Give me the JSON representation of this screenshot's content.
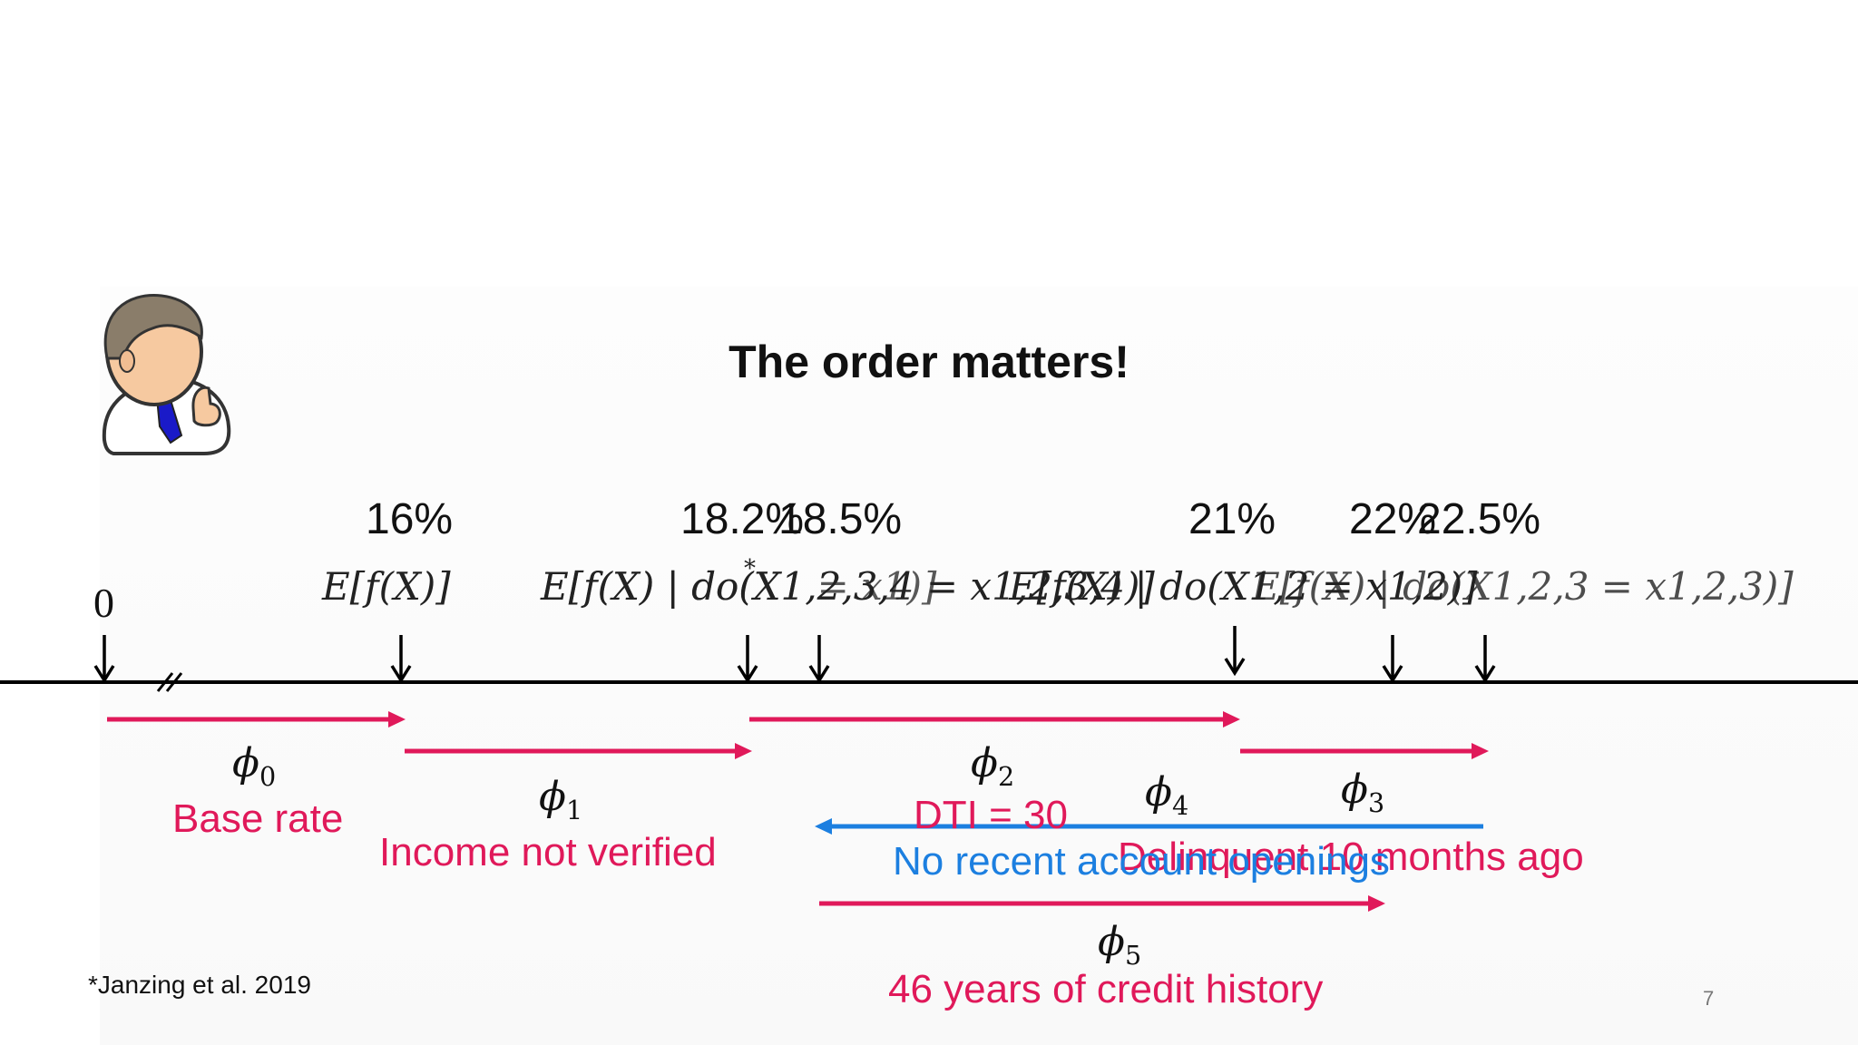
{
  "slide": {
    "title": "The order matters!",
    "page_number": "7",
    "footnote": "*Janzing et al. 2019"
  },
  "axis": {
    "origin_label": "0",
    "percent_labels": [
      "16%",
      "18.2%",
      "18.5%",
      "21%",
      "22%",
      "22.5%"
    ],
    "expressions": {
      "e0": "E[f(X)]",
      "e1": "E[f(X) | do(X1,2,3,4 = x1,2,3,4)]",
      "e1_footnote_mark": "*",
      "e2": "E[f(X) | do(X1 = x1)]",
      "e3": "E[f(X) | do(X1,2 = x1,2)]",
      "e4": "E[f(X) | do(X1,2,3 = x1,2,3)]"
    }
  },
  "contributions": [
    {
      "symbol": "ϕ",
      "index": "0",
      "label": "Base rate",
      "color": "#e0195a",
      "direction": "right"
    },
    {
      "symbol": "ϕ",
      "index": "1",
      "label": "Income not verified",
      "color": "#e0195a",
      "direction": "right"
    },
    {
      "symbol": "ϕ",
      "index": "2",
      "label": "DTI = 30",
      "color": "#e0195a",
      "direction": "right"
    },
    {
      "symbol": "ϕ",
      "index": "3",
      "label": "Delinquent 10 months ago",
      "color": "#e0195a",
      "direction": "right"
    },
    {
      "symbol": "ϕ",
      "index": "4",
      "label": "No recent account openings",
      "color": "#1c7fe0",
      "direction": "left"
    },
    {
      "symbol": "ϕ",
      "index": "5",
      "label": "46 years of credit history",
      "color": "#e0195a",
      "direction": "right"
    }
  ],
  "icons": {
    "presenter": "businessman-thumbs-up-icon"
  }
}
